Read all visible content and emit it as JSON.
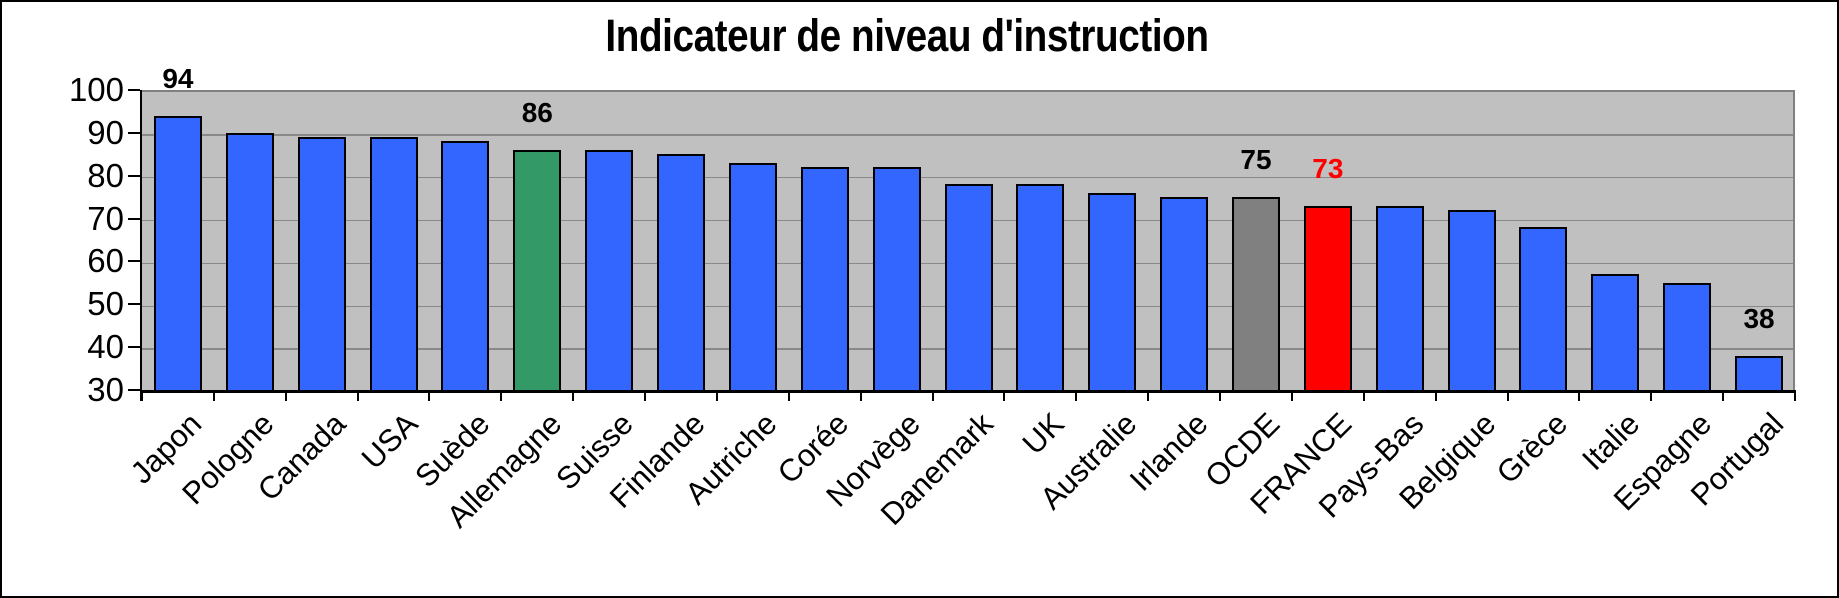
{
  "title": "Indicateur de niveau d'instruction",
  "chart_data": {
    "type": "bar",
    "title": "Indicateur de niveau d'instruction",
    "categories": [
      "Japon",
      "Pologne",
      "Canada",
      "USA",
      "Suède",
      "Allemagne",
      "Suisse",
      "Finlande",
      "Autriche",
      "Corée",
      "Norvège",
      "Danemark",
      "UK",
      "Australie",
      "Irlande",
      "OCDE",
      "FRANCE",
      "Pays-Bas",
      "Belgique",
      "Grèce",
      "Italie",
      "Espagne",
      "Portugal"
    ],
    "values": [
      94,
      90,
      89,
      89,
      88,
      86,
      86,
      85,
      83,
      82,
      82,
      78,
      78,
      76,
      75,
      75,
      73,
      73,
      72,
      68,
      57,
      55,
      38
    ],
    "ylim": [
      30,
      100
    ],
    "yticks": [
      100,
      90,
      80,
      70,
      60,
      50,
      40,
      30
    ],
    "grid": true,
    "legend": false,
    "plot_background": "#c0c0c0",
    "gridline_color": "#898989",
    "default_bar_color": "#3366ff",
    "bar_color_overrides": {
      "Allemagne": "#339966",
      "OCDE": "#808080",
      "FRANCE": "#ff0000"
    },
    "data_labels": [
      {
        "category": "Japon",
        "text": "94",
        "color": "#000000"
      },
      {
        "category": "Allemagne",
        "text": "86",
        "color": "#000000"
      },
      {
        "category": "OCDE",
        "text": "75",
        "color": "#000000"
      },
      {
        "category": "FRANCE",
        "text": "73",
        "color": "#ff0000"
      },
      {
        "category": "Portugal",
        "text": "38",
        "color": "#000000"
      }
    ]
  }
}
